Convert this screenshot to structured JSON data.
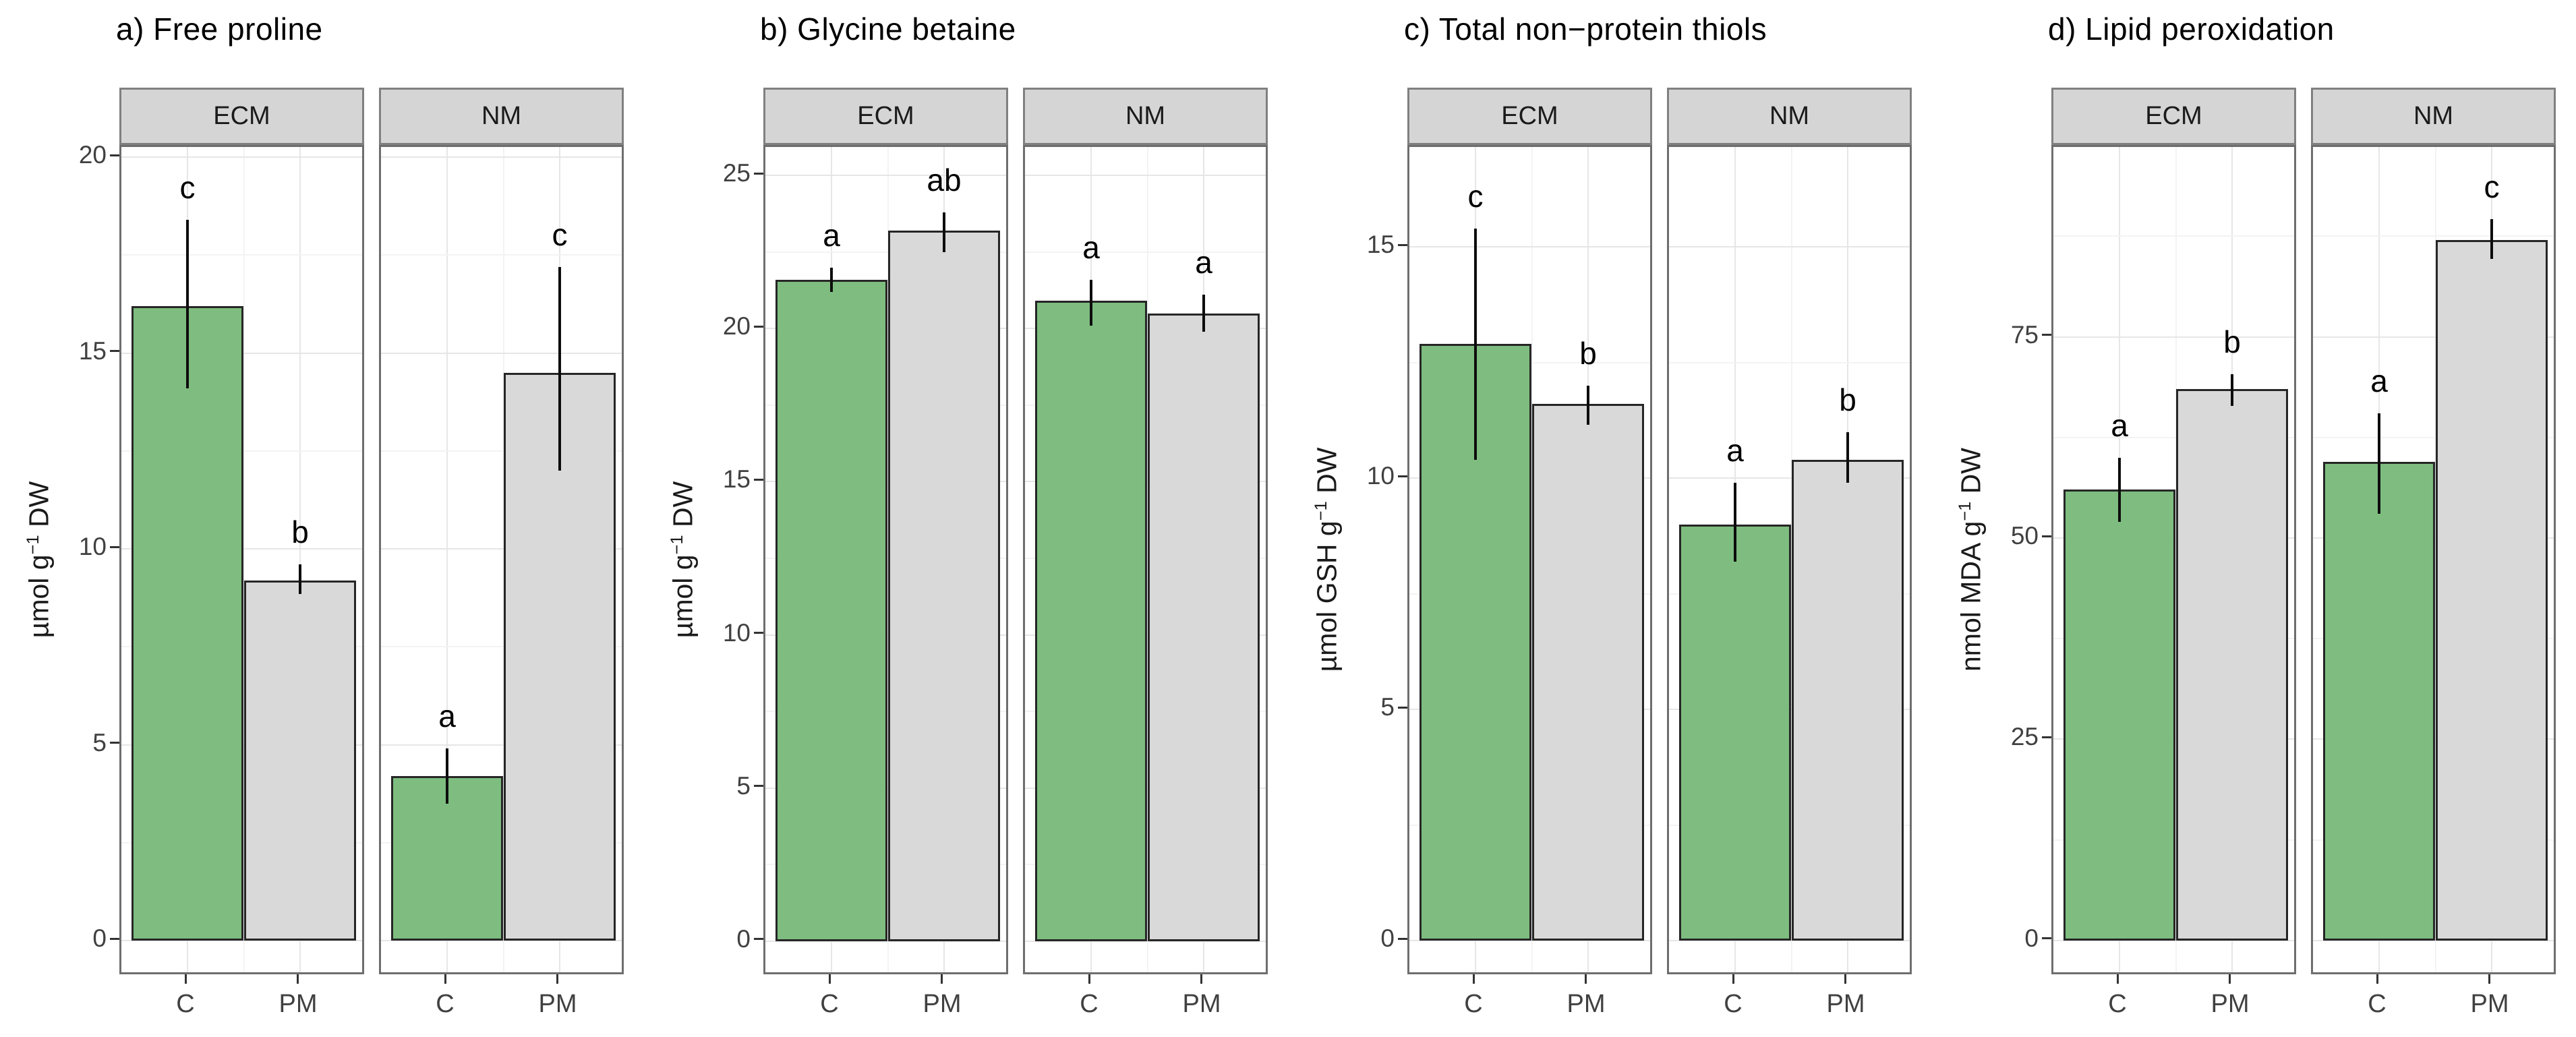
{
  "figure": {
    "kind": "faceted bar chart figure (ggplot style), 4 panels",
    "treatments": [
      "C",
      "PM"
    ],
    "facet_labels": [
      "ECM",
      "NM"
    ],
    "colors": {
      "bar_C_fill": "#7ebd7f",
      "bar_PM_fill": "#d9d9d9",
      "bar_outline": "#262626",
      "error_bar": "#0d0d0d",
      "strip_fill": "#d5d5d5",
      "strip_border": "#808080",
      "panel_border": "#6e6e6e",
      "grid_major": "#e6e6e6",
      "grid_minor": "#f3f3f3",
      "axis_text": "#404040"
    }
  },
  "chart_data": [
    {
      "type": "bar",
      "title": "a) Free proline",
      "ylabel": {
        "prefix": "µmol g",
        "sup": "−1",
        "suffix": " DW"
      },
      "yticks": [
        0,
        5,
        10,
        15,
        20
      ],
      "ylim_display": [
        -0.91,
        20.26
      ],
      "xticklabels": [
        "C",
        "PM"
      ],
      "facets": [
        {
          "label": "ECM",
          "bars": [
            {
              "x": "C",
              "value": 16.2,
              "err_lo": 14.1,
              "err_hi": 18.4,
              "letter": "c",
              "color": "green"
            },
            {
              "x": "PM",
              "value": 9.2,
              "err_lo": 8.85,
              "err_hi": 9.6,
              "letter": "b",
              "color": "gray"
            }
          ]
        },
        {
          "label": "NM",
          "bars": [
            {
              "x": "C",
              "value": 4.2,
              "err_lo": 3.5,
              "err_hi": 4.9,
              "letter": "a",
              "color": "green"
            },
            {
              "x": "PM",
              "value": 14.5,
              "err_lo": 12.0,
              "err_hi": 17.2,
              "letter": "c",
              "color": "gray"
            }
          ]
        }
      ]
    },
    {
      "type": "bar",
      "title": "b) Glycine betaine",
      "ylabel": {
        "prefix": "µmol g",
        "sup": "−1",
        "suffix": " DW"
      },
      "yticks": [
        0,
        5,
        10,
        15,
        20,
        25
      ],
      "ylim_display": [
        -1.15,
        25.93
      ],
      "xticklabels": [
        "C",
        "PM"
      ],
      "facets": [
        {
          "label": "ECM",
          "bars": [
            {
              "x": "C",
              "value": 21.6,
              "err_lo": 21.2,
              "err_hi": 22.0,
              "letter": "a",
              "color": "green"
            },
            {
              "x": "PM",
              "value": 23.2,
              "err_lo": 22.5,
              "err_hi": 23.8,
              "letter": "ab",
              "color": "gray"
            }
          ]
        },
        {
          "label": "NM",
          "bars": [
            {
              "x": "C",
              "value": 20.9,
              "err_lo": 20.1,
              "err_hi": 21.6,
              "letter": "a",
              "color": "green"
            },
            {
              "x": "PM",
              "value": 20.5,
              "err_lo": 19.9,
              "err_hi": 21.1,
              "letter": "a",
              "color": "gray"
            }
          ]
        }
      ]
    },
    {
      "type": "bar",
      "title": "c) Total non−protein thiols",
      "ylabel": {
        "prefix": "µmol GSH g",
        "sup": "−1",
        "suffix": " DW"
      },
      "yticks": [
        0,
        5,
        10,
        15
      ],
      "ylim_display": [
        -0.77,
        17.16
      ],
      "xticklabels": [
        "C",
        "PM"
      ],
      "facets": [
        {
          "label": "ECM",
          "bars": [
            {
              "x": "C",
              "value": 12.9,
              "err_lo": 10.4,
              "err_hi": 15.4,
              "letter": "c",
              "color": "green"
            },
            {
              "x": "PM",
              "value": 11.6,
              "err_lo": 11.15,
              "err_hi": 12.0,
              "letter": "b",
              "color": "gray"
            }
          ]
        },
        {
          "label": "NM",
          "bars": [
            {
              "x": "C",
              "value": 9.0,
              "err_lo": 8.2,
              "err_hi": 9.9,
              "letter": "a",
              "color": "green"
            },
            {
              "x": "PM",
              "value": 10.4,
              "err_lo": 9.9,
              "err_hi": 11.0,
              "letter": "b",
              "color": "gray"
            }
          ]
        }
      ]
    },
    {
      "type": "bar",
      "title": "d) Lipid peroxidation",
      "ylabel": {
        "prefix": "nmol MDA g",
        "sup": "−1",
        "suffix": " DW"
      },
      "yticks": [
        0,
        25,
        50,
        75
      ],
      "ylim_display": [
        -4.45,
        98.6
      ],
      "xticklabels": [
        "C",
        "PM"
      ],
      "facets": [
        {
          "label": "ECM",
          "bars": [
            {
              "x": "C",
              "value": 56.0,
              "err_lo": 52.0,
              "err_hi": 60.0,
              "letter": "a",
              "color": "green"
            },
            {
              "x": "PM",
              "value": 68.5,
              "err_lo": 66.4,
              "err_hi": 70.4,
              "letter": "b",
              "color": "gray"
            }
          ]
        },
        {
          "label": "NM",
          "bars": [
            {
              "x": "C",
              "value": 59.5,
              "err_lo": 53.0,
              "err_hi": 65.5,
              "letter": "a",
              "color": "green"
            },
            {
              "x": "PM",
              "value": 87.0,
              "err_lo": 84.7,
              "err_hi": 89.6,
              "letter": "c",
              "color": "gray"
            }
          ]
        }
      ]
    }
  ]
}
